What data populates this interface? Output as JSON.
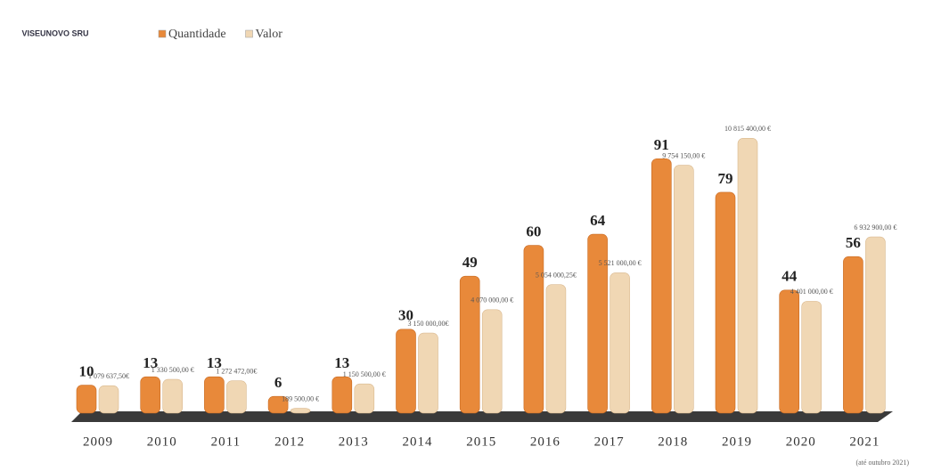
{
  "brand": "VISEUNOVO SRU",
  "chart_data": {
    "type": "bar",
    "categories": [
      "2009",
      "2010",
      "2011",
      "2012",
      "2013",
      "2014",
      "2015",
      "2016",
      "2017",
      "2018",
      "2019",
      "2020",
      "2021"
    ],
    "series": [
      {
        "name": "Quantidade",
        "color": "#e8893a",
        "values": [
          10,
          13,
          13,
          6,
          13,
          30,
          49,
          60,
          64,
          91,
          79,
          44,
          56
        ]
      },
      {
        "name": "Valor",
        "color": "#f0d7b4",
        "axis": "y2",
        "values": [
          1079637.5,
          1330500,
          1272472,
          189500,
          1150500,
          3150000,
          4070000,
          5054000.25,
          5521000,
          9754150,
          10815400,
          4401000,
          6932900
        ],
        "value_labels": [
          "1 079 637,50€",
          "1 330 500,00 €",
          "1 272 472,00€",
          "189 500,00 €",
          "1 150 500,00 €",
          "3 150 000,00€",
          "4 070 000,00 €",
          "5 054 000,25€",
          "5 521 000,00 €",
          "9 754 150,00 €",
          "10 815 400,00 €",
          "4 401 000,00 €",
          "6 932 900,00 €"
        ]
      }
    ],
    "ylim": [
      0,
      100
    ],
    "y2lim": [
      0,
      11000000
    ],
    "legend": "top",
    "footnote": "(até outubro 2021)"
  }
}
